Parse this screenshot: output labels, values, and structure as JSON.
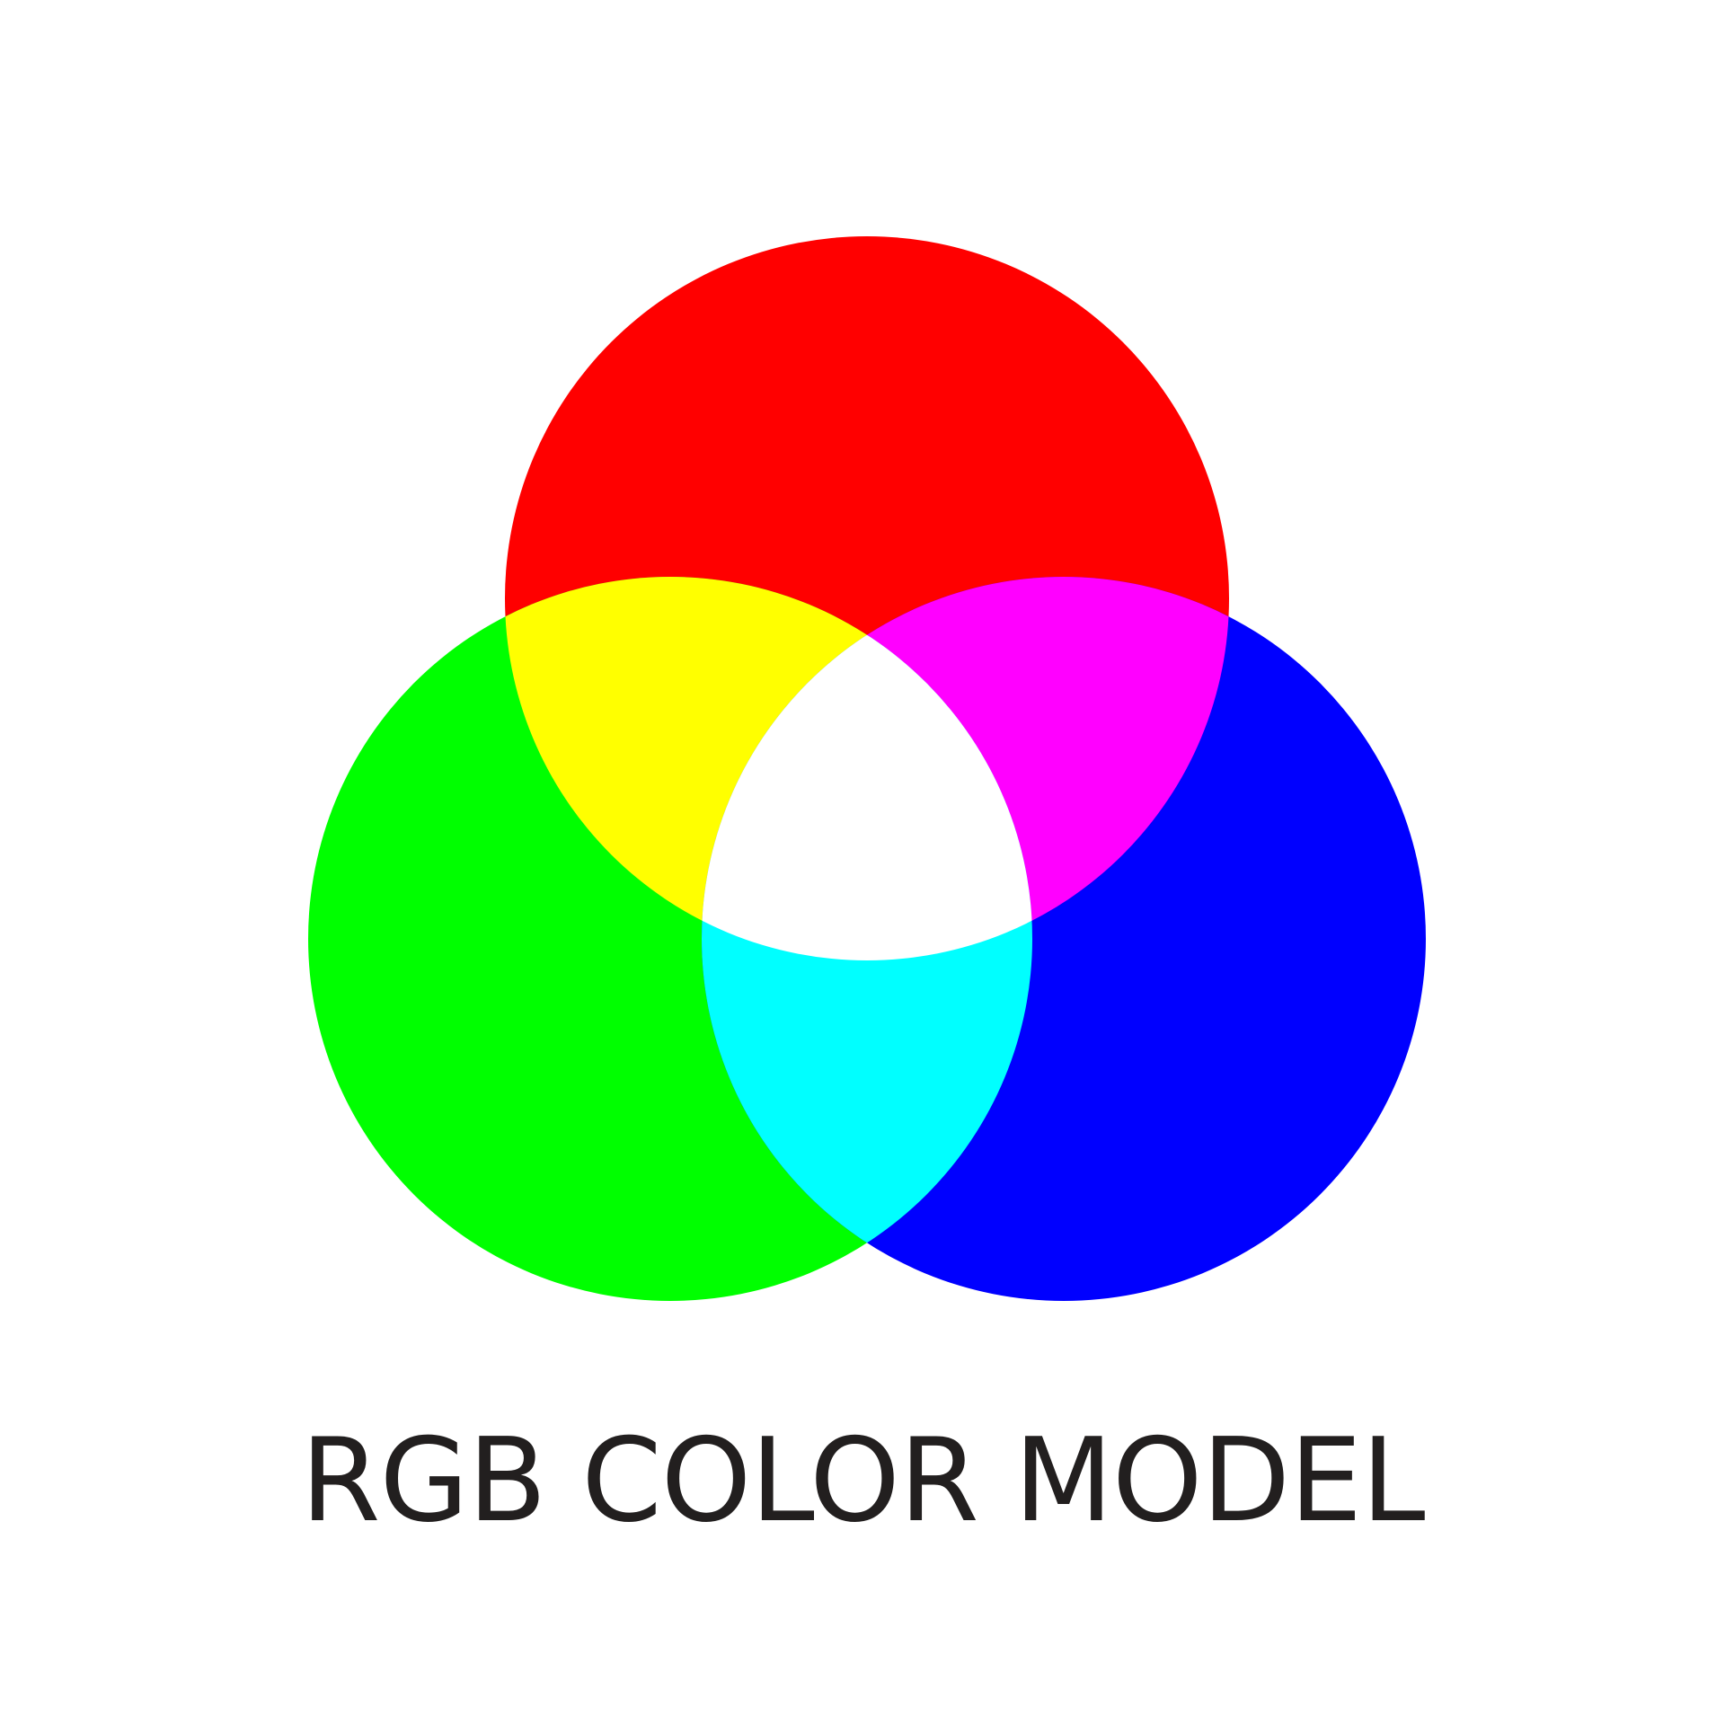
{
  "diagram": {
    "title": "RGB COLOR MODEL",
    "colors": {
      "red": "#ff0000",
      "green": "#00ff00",
      "blue": "#0000ff",
      "yellow": "#ffff00",
      "magenta": "#ff00ff",
      "cyan": "#00ffff",
      "white": "#ffffff",
      "text": "#221f1f",
      "background": "#ffffff"
    },
    "circles": [
      {
        "name": "red-circle",
        "color": "red"
      },
      {
        "name": "green-circle",
        "color": "green"
      },
      {
        "name": "blue-circle",
        "color": "blue"
      }
    ],
    "overlaps": [
      {
        "name": "yellow-overlap",
        "of": [
          "red",
          "green"
        ],
        "color": "yellow"
      },
      {
        "name": "magenta-overlap",
        "of": [
          "red",
          "blue"
        ],
        "color": "magenta"
      },
      {
        "name": "cyan-overlap",
        "of": [
          "green",
          "blue"
        ],
        "color": "cyan"
      },
      {
        "name": "white-center",
        "of": [
          "red",
          "green",
          "blue"
        ],
        "color": "white"
      }
    ]
  }
}
